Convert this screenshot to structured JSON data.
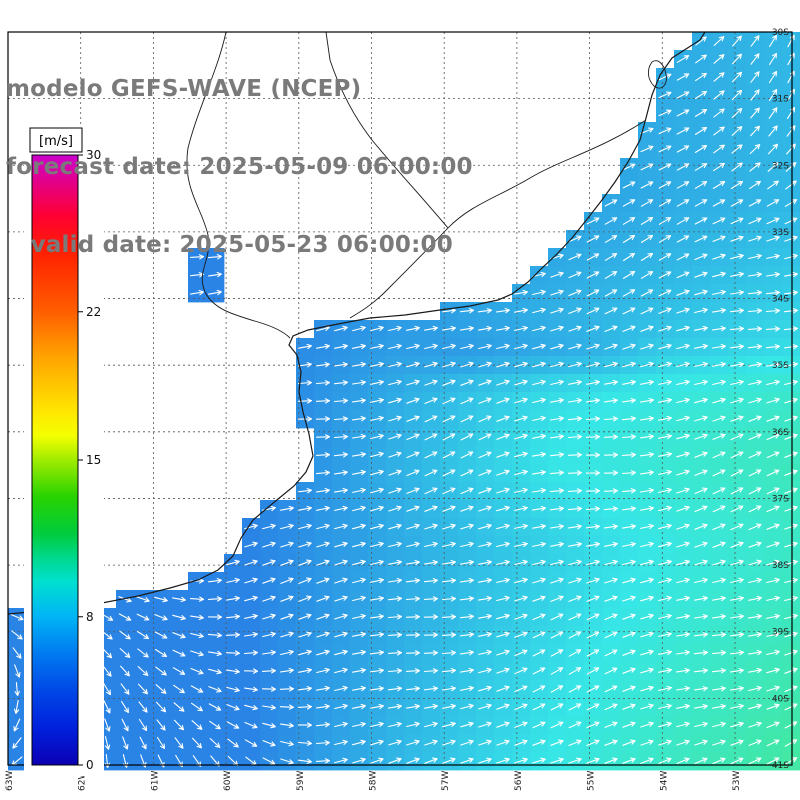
{
  "title": {
    "line1": "modelo GEFS-WAVE (NCEP)",
    "line2": "forecast date: 2025-05-09 06:00:00",
    "line3": "   valid date: 2025-05-23 06:00:00"
  },
  "colorbar": {
    "unit_label": "[m/s]",
    "ticks": [
      {
        "value": "30",
        "frac": 0.0
      },
      {
        "value": "22",
        "frac": 0.257
      },
      {
        "value": "15",
        "frac": 0.5
      },
      {
        "value": "8",
        "frac": 0.757
      },
      {
        "value": "0",
        "frac": 1.0
      }
    ],
    "stops": [
      [
        0.0,
        "#cc00cc"
      ],
      [
        0.05,
        "#e6007f"
      ],
      [
        0.1,
        "#ff0033"
      ],
      [
        0.16,
        "#ff2000"
      ],
      [
        0.257,
        "#ff5e00"
      ],
      [
        0.33,
        "#ffa200"
      ],
      [
        0.42,
        "#ffe600"
      ],
      [
        0.46,
        "#f4ff00"
      ],
      [
        0.5,
        "#a0ec00"
      ],
      [
        0.56,
        "#28d200"
      ],
      [
        0.62,
        "#00cc3c"
      ],
      [
        0.66,
        "#00d88c"
      ],
      [
        0.7,
        "#00e0d0"
      ],
      [
        0.757,
        "#00b4f5"
      ],
      [
        0.82,
        "#0078f0"
      ],
      [
        0.88,
        "#0046e6"
      ],
      [
        0.94,
        "#0020dc"
      ],
      [
        1.0,
        "#0c00b4"
      ]
    ]
  },
  "axes": {
    "lat_labels": [
      "30S",
      "31S",
      "32S",
      "33S",
      "34S",
      "35S",
      "36S",
      "37S",
      "38S",
      "39S",
      "40S",
      "41S"
    ],
    "lon_labels": [
      "63W",
      "62W",
      "61W",
      "60W",
      "59W",
      "58W",
      "57W",
      "56W",
      "55W",
      "54W",
      "53W"
    ]
  },
  "map_style": {
    "ocean_blue": "#2e8fe2",
    "ocean_green": "#3fd898",
    "arrow_color": "#ffffff",
    "land_color": "#ffffff",
    "coastline_color": "#1a1a1a",
    "grid_color": "#555555",
    "frame_color": "#000000",
    "label_color": "#222222",
    "title_color": "#7a7a7a"
  }
}
